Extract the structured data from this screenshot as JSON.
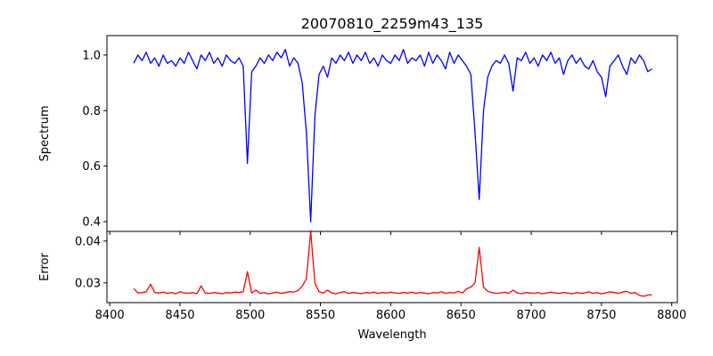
{
  "chart_data": [
    {
      "type": "line",
      "title": "20070810_2259m43_135",
      "xlabel": "",
      "ylabel": "Spectrum",
      "xlim": [
        8398,
        8804
      ],
      "ylim": [
        0.365,
        1.07
      ],
      "xticks": [
        8400,
        8450,
        8500,
        8550,
        8600,
        8650,
        8700,
        8750,
        8800
      ],
      "yticks": [
        0.4,
        0.6,
        0.8,
        1.0
      ],
      "ytick_labels": [
        "0.4",
        "0.6",
        "0.8",
        "1.0"
      ],
      "color": "#0000ff",
      "grid": false,
      "wavelength_start": 8417,
      "wavelength_step": 3,
      "values": [
        0.97,
        1.0,
        0.98,
        1.01,
        0.97,
        0.99,
        0.96,
        1.0,
        0.97,
        0.98,
        0.96,
        0.99,
        0.97,
        1.01,
        0.98,
        0.95,
        1.0,
        0.98,
        1.01,
        0.97,
        0.99,
        0.96,
        1.0,
        0.98,
        0.97,
        0.99,
        0.96,
        0.61,
        0.94,
        0.96,
        0.99,
        0.97,
        1.0,
        0.98,
        1.01,
        0.99,
        1.02,
        0.96,
        0.99,
        0.97,
        0.9,
        0.72,
        0.4,
        0.78,
        0.93,
        0.96,
        0.92,
        0.99,
        0.97,
        1.0,
        0.98,
        1.01,
        0.97,
        1.0,
        0.98,
        1.01,
        0.97,
        0.99,
        0.96,
        1.0,
        0.98,
        0.97,
        1.0,
        0.98,
        1.02,
        0.97,
        0.99,
        0.98,
        1.0,
        0.96,
        1.01,
        0.97,
        1.0,
        0.98,
        0.95,
        1.01,
        0.97,
        1.0,
        0.98,
        0.96,
        0.93,
        0.72,
        0.48,
        0.8,
        0.92,
        0.96,
        0.98,
        0.97,
        1.0,
        0.97,
        0.87,
        0.99,
        0.98,
        1.01,
        0.97,
        0.99,
        0.96,
        1.0,
        0.98,
        1.01,
        0.97,
        0.99,
        0.93,
        0.98,
        1.0,
        0.97,
        0.99,
        0.96,
        0.95,
        0.98,
        0.94,
        0.92,
        0.85,
        0.96,
        0.98,
        1.0,
        0.96,
        0.93,
        0.99,
        0.97,
        1.0,
        0.98,
        0.94,
        0.95
      ]
    },
    {
      "type": "line",
      "title": "",
      "xlabel": "Wavelength",
      "ylabel": "Error",
      "xlim": [
        8398,
        8804
      ],
      "ylim": [
        0.0253,
        0.0423
      ],
      "xticks": [
        8400,
        8450,
        8500,
        8550,
        8600,
        8650,
        8700,
        8750,
        8800
      ],
      "yticks": [
        0.03,
        0.04
      ],
      "ytick_labels": [
        "0.03",
        "0.04"
      ],
      "color": "#ff0000",
      "grid": false,
      "wavelength_start": 8417,
      "wavelength_step": 3,
      "values": [
        0.0287,
        0.0276,
        0.0277,
        0.0279,
        0.0297,
        0.0277,
        0.0276,
        0.0278,
        0.0275,
        0.0277,
        0.0274,
        0.0279,
        0.0276,
        0.0275,
        0.0277,
        0.0274,
        0.0293,
        0.0276,
        0.0275,
        0.0277,
        0.0276,
        0.0274,
        0.0277,
        0.0276,
        0.0278,
        0.0277,
        0.0279,
        0.0327,
        0.0276,
        0.0283,
        0.0275,
        0.0277,
        0.0274,
        0.0276,
        0.0278,
        0.0275,
        0.0277,
        0.0279,
        0.0278,
        0.0282,
        0.0292,
        0.031,
        0.0424,
        0.03,
        0.0279,
        0.0276,
        0.0283,
        0.0276,
        0.0274,
        0.0277,
        0.0279,
        0.0275,
        0.0277,
        0.0276,
        0.0274,
        0.0277,
        0.0276,
        0.0278,
        0.0275,
        0.0277,
        0.0276,
        0.0278,
        0.0276,
        0.0275,
        0.0277,
        0.0276,
        0.0278,
        0.0275,
        0.0277,
        0.0276,
        0.0274,
        0.0277,
        0.0276,
        0.0279,
        0.0275,
        0.0277,
        0.0276,
        0.028,
        0.0276,
        0.0286,
        0.029,
        0.03,
        0.0385,
        0.029,
        0.028,
        0.0277,
        0.0275,
        0.0276,
        0.0278,
        0.0275,
        0.0283,
        0.0276,
        0.0274,
        0.0277,
        0.0276,
        0.0275,
        0.0277,
        0.0274,
        0.0276,
        0.0278,
        0.0276,
        0.0275,
        0.0277,
        0.0276,
        0.0274,
        0.0277,
        0.0275,
        0.0276,
        0.0279,
        0.0275,
        0.0277,
        0.0274,
        0.0276,
        0.0279,
        0.0277,
        0.0275,
        0.0278,
        0.028,
        0.0275,
        0.0277,
        0.027,
        0.0268,
        0.0271,
        0.0272
      ]
    }
  ]
}
